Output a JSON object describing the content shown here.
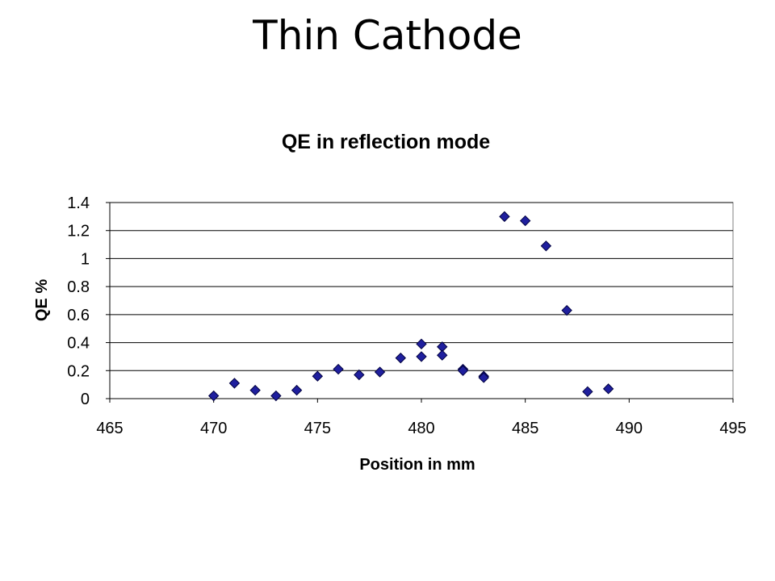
{
  "slide": {
    "title": "Thin Cathode"
  },
  "chart_data": {
    "type": "scatter",
    "title": "QE in reflection mode",
    "xlabel": "Position in mm",
    "ylabel": "QE %",
    "xlim": [
      465,
      495
    ],
    "ylim": [
      0,
      1.4
    ],
    "xticks": [
      465,
      470,
      475,
      480,
      485,
      490,
      495
    ],
    "yticks": [
      0,
      0.2,
      0.4,
      0.6,
      0.8,
      1,
      1.2,
      1.4
    ],
    "grid": "horizontal",
    "legend": "none",
    "marker": "diamond",
    "marker_color": "#1f1f9e",
    "points": [
      {
        "x": 470,
        "y": 0.02
      },
      {
        "x": 471,
        "y": 0.11
      },
      {
        "x": 472,
        "y": 0.06
      },
      {
        "x": 473,
        "y": 0.02
      },
      {
        "x": 474,
        "y": 0.06
      },
      {
        "x": 475,
        "y": 0.16
      },
      {
        "x": 476,
        "y": 0.21
      },
      {
        "x": 477,
        "y": 0.17
      },
      {
        "x": 478,
        "y": 0.19
      },
      {
        "x": 479,
        "y": 0.29
      },
      {
        "x": 480,
        "y": 0.39
      },
      {
        "x": 480,
        "y": 0.3
      },
      {
        "x": 481,
        "y": 0.37
      },
      {
        "x": 481,
        "y": 0.31
      },
      {
        "x": 482,
        "y": 0.21
      },
      {
        "x": 482,
        "y": 0.2
      },
      {
        "x": 483,
        "y": 0.16
      },
      {
        "x": 483,
        "y": 0.15
      },
      {
        "x": 484,
        "y": 1.3
      },
      {
        "x": 485,
        "y": 1.27
      },
      {
        "x": 486,
        "y": 1.09
      },
      {
        "x": 487,
        "y": 0.63
      },
      {
        "x": 488,
        "y": 0.05
      },
      {
        "x": 489,
        "y": 0.07
      }
    ]
  }
}
